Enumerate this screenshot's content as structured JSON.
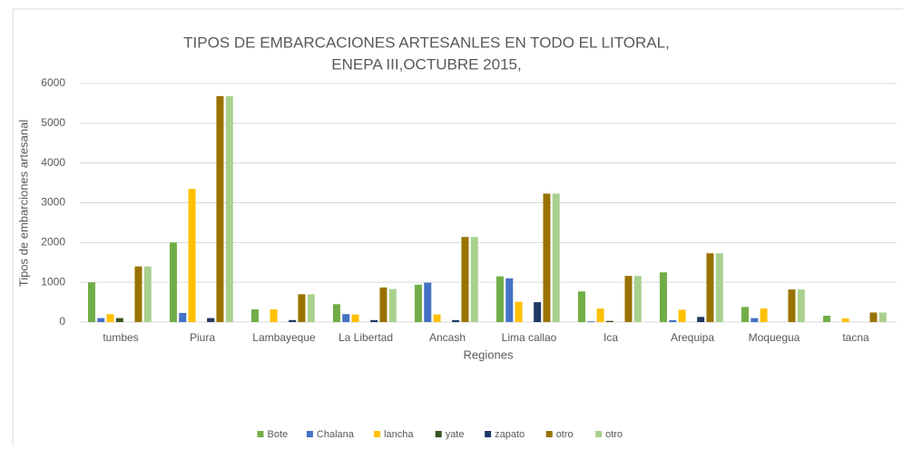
{
  "chart_data": {
    "type": "bar",
    "title": [
      "TIPOS DE EMBARCACIONES ARTESANLES EN  TODO EL LITORAL,",
      "ENEPA III,OCTUBRE 2015,"
    ],
    "ylabel": "Tipos de embarciones artesanal",
    "xlabel": "Regiones",
    "categories": [
      "tumbes",
      "Piura",
      "Lambayeque",
      "La Libertad",
      "Ancash",
      "Lima  callao",
      "Ica",
      "Arequipa",
      "Moquegua",
      "tacna"
    ],
    "series": [
      {
        "name": "Bote",
        "color": "#70ad47",
        "values": [
          1000,
          2000,
          320,
          450,
          940,
          1150,
          770,
          1250,
          380,
          160
        ]
      },
      {
        "name": "Chalana",
        "color": "#4472c4",
        "values": [
          100,
          230,
          0,
          200,
          990,
          1100,
          20,
          50,
          100,
          0
        ]
      },
      {
        "name": "lancha",
        "color": "#ffc000",
        "values": [
          200,
          3350,
          320,
          190,
          190,
          510,
          340,
          310,
          340,
          90
        ]
      },
      {
        "name": "yate",
        "color": "#375623",
        "values": [
          100,
          0,
          0,
          0,
          0,
          0,
          30,
          0,
          0,
          0
        ]
      },
      {
        "name": "zapato",
        "color": "#203864",
        "values": [
          0,
          100,
          50,
          50,
          50,
          500,
          0,
          130,
          0,
          0
        ]
      },
      {
        "name": "otro",
        "color": "#997300",
        "values": [
          1400,
          5680,
          700,
          870,
          2140,
          3230,
          1160,
          1730,
          820,
          240
        ]
      },
      {
        "name": "otro",
        "color": "#a9d18e",
        "values": [
          1400,
          5680,
          700,
          830,
          2140,
          3230,
          1160,
          1730,
          820,
          240
        ]
      }
    ],
    "ylim": [
      0,
      6000
    ],
    "yticks": [
      0,
      1000,
      2000,
      3000,
      4000,
      5000,
      6000
    ],
    "grid": true,
    "legend": "bottom"
  }
}
